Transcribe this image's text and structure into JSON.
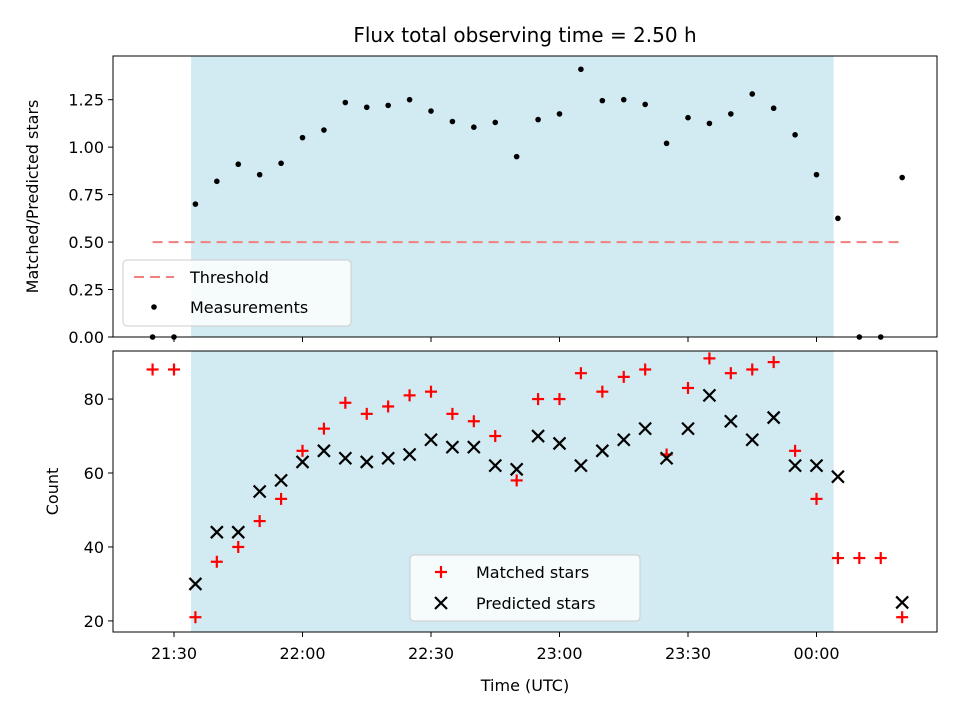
{
  "chart_data": [
    {
      "type": "scatter",
      "title": "Flux total observing time = 2.50 h",
      "xlabel": "",
      "ylabel": "Matched/Predicted stars",
      "ylim": [
        0,
        1.48
      ],
      "yticks": [
        "0.00",
        "0.25",
        "0.50",
        "0.75",
        "1.00",
        "1.25"
      ],
      "ytick_values": [
        0,
        0.25,
        0.5,
        0.75,
        1.0,
        1.25
      ],
      "shaded_region": {
        "start": "21:34",
        "end": "00:04",
        "color": "#add8e6"
      },
      "threshold": {
        "name": "Threshold",
        "value": 0.5,
        "start": "21:25",
        "end": "00:20",
        "color": "#f08080"
      },
      "legend": {
        "placement": "lower-left",
        "entries": [
          "Threshold",
          "Measurements"
        ]
      },
      "series": [
        {
          "name": "Measurements",
          "color": "#000000",
          "marker": "dot",
          "x": [
            "21:25",
            "21:30",
            "21:35",
            "21:40",
            "21:45",
            "21:50",
            "21:55",
            "22:00",
            "22:05",
            "22:10",
            "22:15",
            "22:20",
            "22:25",
            "22:30",
            "22:35",
            "22:40",
            "22:45",
            "22:50",
            "22:55",
            "23:00",
            "23:05",
            "23:10",
            "23:15",
            "23:20",
            "23:25",
            "23:30",
            "23:35",
            "23:40",
            "23:45",
            "23:50",
            "23:55",
            "00:00",
            "00:05",
            "00:10",
            "00:15",
            "00:20"
          ],
          "y": [
            0.0,
            0.0,
            0.7,
            0.82,
            0.91,
            0.855,
            0.915,
            1.05,
            1.09,
            1.235,
            1.21,
            1.22,
            1.25,
            1.19,
            1.135,
            1.105,
            1.13,
            0.95,
            1.145,
            1.175,
            1.41,
            1.245,
            1.25,
            1.225,
            1.02,
            1.155,
            1.125,
            1.175,
            1.28,
            1.205,
            1.065,
            0.855,
            0.625,
            0.0,
            0.0,
            0.84
          ]
        }
      ]
    },
    {
      "type": "scatter",
      "title": "",
      "xlabel": "Time (UTC)",
      "ylabel": "Count",
      "ylim": [
        17,
        93
      ],
      "yticks": [
        "20",
        "40",
        "60",
        "80"
      ],
      "ytick_values": [
        20,
        40,
        60,
        80
      ],
      "xticks": [
        "21:30",
        "22:00",
        "22:30",
        "23:00",
        "23:30",
        "00:00"
      ],
      "shaded_region": {
        "start": "21:34",
        "end": "00:04",
        "color": "#add8e6"
      },
      "legend": {
        "placement": "lower-center",
        "entries": [
          "Matched stars",
          "Predicted stars"
        ]
      },
      "series": [
        {
          "name": "Matched stars",
          "color": "#ff0000",
          "marker": "plus",
          "x": [
            "21:25",
            "21:30",
            "21:35",
            "21:40",
            "21:45",
            "21:50",
            "21:55",
            "22:00",
            "22:05",
            "22:10",
            "22:15",
            "22:20",
            "22:25",
            "22:30",
            "22:35",
            "22:40",
            "22:45",
            "22:50",
            "22:55",
            "23:00",
            "23:05",
            "23:10",
            "23:15",
            "23:20",
            "23:25",
            "23:30",
            "23:35",
            "23:40",
            "23:45",
            "23:50",
            "23:55",
            "00:00",
            "00:05",
            "00:10",
            "00:15",
            "00:20"
          ],
          "y": [
            88,
            88,
            21,
            36,
            40,
            47,
            53,
            66,
            72,
            79,
            76,
            78,
            81,
            82,
            76,
            74,
            70,
            58,
            80,
            80,
            87,
            82,
            86,
            88,
            65,
            83,
            91,
            87,
            88,
            90,
            66,
            53,
            37,
            37,
            37,
            21
          ]
        },
        {
          "name": "Predicted stars",
          "color": "#000000",
          "marker": "x",
          "x": [
            "21:35",
            "21:40",
            "21:45",
            "21:50",
            "21:55",
            "22:00",
            "22:05",
            "22:10",
            "22:15",
            "22:20",
            "22:25",
            "22:30",
            "22:35",
            "22:40",
            "22:45",
            "22:50",
            "22:55",
            "23:00",
            "23:05",
            "23:10",
            "23:15",
            "23:20",
            "23:25",
            "23:30",
            "23:35",
            "23:40",
            "23:45",
            "23:50",
            "23:55",
            "00:00",
            "00:05",
            "00:20"
          ],
          "y": [
            30,
            44,
            44,
            55,
            58,
            63,
            66,
            64,
            63,
            64,
            65,
            69,
            67,
            67,
            62,
            61,
            70,
            68,
            62,
            66,
            69,
            72,
            64,
            72,
            81,
            74,
            69,
            75,
            62,
            62,
            59,
            25
          ]
        }
      ]
    }
  ]
}
